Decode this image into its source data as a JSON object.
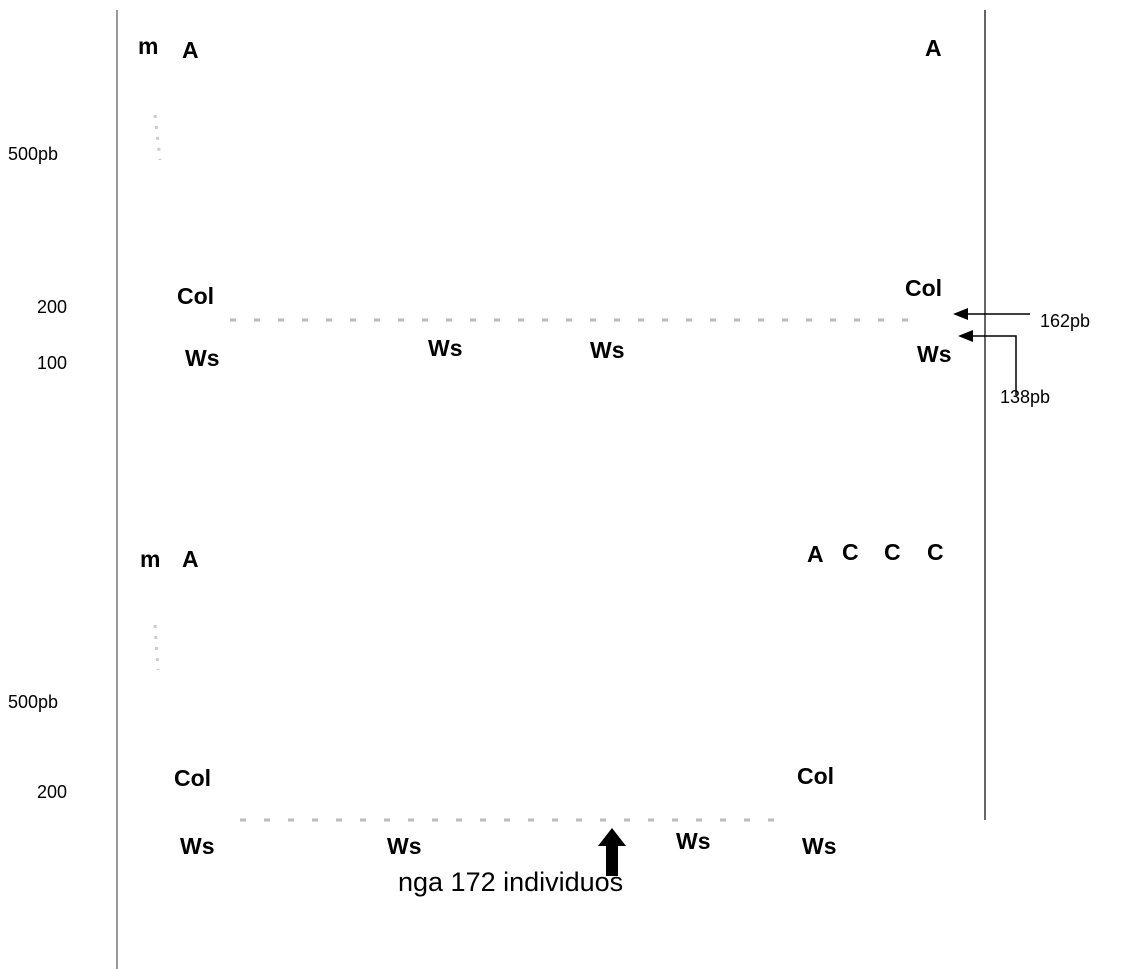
{
  "top_panel": {
    "lane_labels": [
      "m",
      "A",
      "A"
    ],
    "size_markers": [
      "500pb",
      "200",
      "100"
    ],
    "allele_labels": [
      "Col",
      "Col",
      "Ws",
      "Ws",
      "Ws",
      "Ws"
    ],
    "arrow_labels": [
      "162pb",
      "138pb"
    ]
  },
  "bottom_panel": {
    "lane_labels": [
      "m",
      "A",
      "A",
      "C",
      "C",
      "C"
    ],
    "size_markers": [
      "500pb",
      "200"
    ],
    "allele_labels": [
      "Col",
      "Col",
      "Ws",
      "Ws",
      "Ws",
      "Ws"
    ],
    "caption": "nga 172 individuos"
  }
}
